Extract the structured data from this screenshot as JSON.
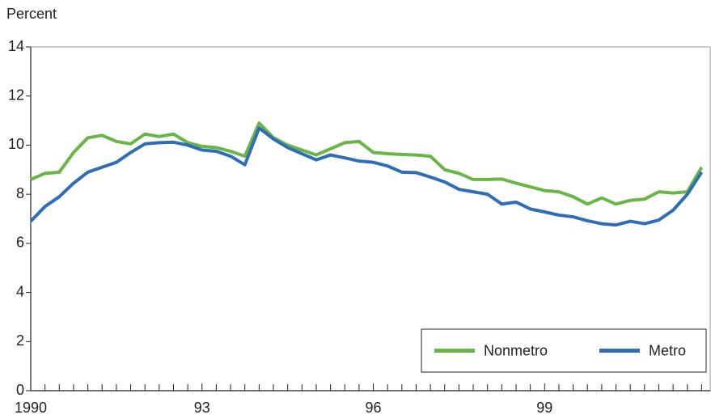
{
  "chart_data": {
    "type": "line",
    "y_label": "Percent",
    "x": [
      1990,
      1990.25,
      1990.5,
      1990.75,
      1991,
      1991.25,
      1991.5,
      1991.75,
      1992,
      1992.25,
      1992.5,
      1992.75,
      1993,
      1993.25,
      1993.5,
      1993.75,
      1994,
      1994.25,
      1994.5,
      1994.75,
      1995,
      1995.25,
      1995.5,
      1995.75,
      1996,
      1996.25,
      1996.5,
      1996.75,
      1997,
      1997.25,
      1997.5,
      1997.75,
      1998,
      1998.25,
      1998.5,
      1998.75,
      1999,
      1999.25,
      1999.5,
      1999.75,
      2000,
      2000.25,
      2000.5,
      2000.75,
      2001,
      2001.25,
      2001.5,
      2001.75
    ],
    "series": [
      {
        "name": "Nonmetro",
        "color": "#6ab547",
        "values": [
          8.6,
          8.85,
          8.9,
          9.7,
          10.3,
          10.4,
          10.15,
          10.05,
          10.45,
          10.35,
          10.45,
          10.1,
          9.95,
          9.9,
          9.75,
          9.55,
          10.9,
          10.3,
          10.0,
          9.8,
          9.6,
          9.85,
          10.1,
          10.15,
          9.7,
          9.65,
          9.62,
          9.6,
          9.55,
          9.0,
          8.85,
          8.6,
          8.6,
          8.62,
          8.45,
          8.3,
          8.15,
          8.1,
          7.9,
          7.6,
          7.85,
          7.6,
          7.75,
          7.8,
          8.1,
          8.05,
          8.1,
          9.1
        ]
      },
      {
        "name": "Metro",
        "color": "#2f6db5",
        "values": [
          6.9,
          7.5,
          7.9,
          8.45,
          8.9,
          9.1,
          9.3,
          9.7,
          10.05,
          10.1,
          10.12,
          10.0,
          9.8,
          9.75,
          9.55,
          9.2,
          10.7,
          10.25,
          9.9,
          9.65,
          9.4,
          9.6,
          9.48,
          9.35,
          9.3,
          9.15,
          8.9,
          8.88,
          8.7,
          8.5,
          8.2,
          8.1,
          8.0,
          7.6,
          7.68,
          7.4,
          7.28,
          7.15,
          7.08,
          6.92,
          6.8,
          6.75,
          6.9,
          6.8,
          6.95,
          7.35,
          8.0,
          8.9
        ]
      }
    ],
    "xlim": [
      1990,
      2001.9
    ],
    "xticks": [
      {
        "value": 1990,
        "label": "1990"
      },
      {
        "value": 1993,
        "label": "93"
      },
      {
        "value": 1996,
        "label": "96"
      },
      {
        "value": 1999,
        "label": "99"
      }
    ],
    "xminor_ticks": [
      1990.25,
      1990.5,
      1990.75,
      1991,
      1991.25,
      1991.5,
      1991.75,
      1992,
      1992.25,
      1992.5,
      1992.75,
      1993.25,
      1993.5,
      1993.75,
      1994,
      1994.25,
      1994.5,
      1994.75,
      1995,
      1995.25,
      1995.5,
      1995.75,
      1996.25,
      1996.5,
      1996.75,
      1997,
      1997.25,
      1997.5,
      1997.75,
      1998,
      1998.25,
      1998.5,
      1998.75,
      1999.25,
      1999.5,
      1999.75,
      2000,
      2000.25,
      2000.5,
      2000.75,
      2001,
      2001.25,
      2001.5,
      2001.75
    ],
    "ylim": [
      0,
      14
    ],
    "yticks": [
      0,
      2,
      4,
      6,
      8,
      10,
      12,
      14
    ],
    "legend": "lower-right"
  }
}
